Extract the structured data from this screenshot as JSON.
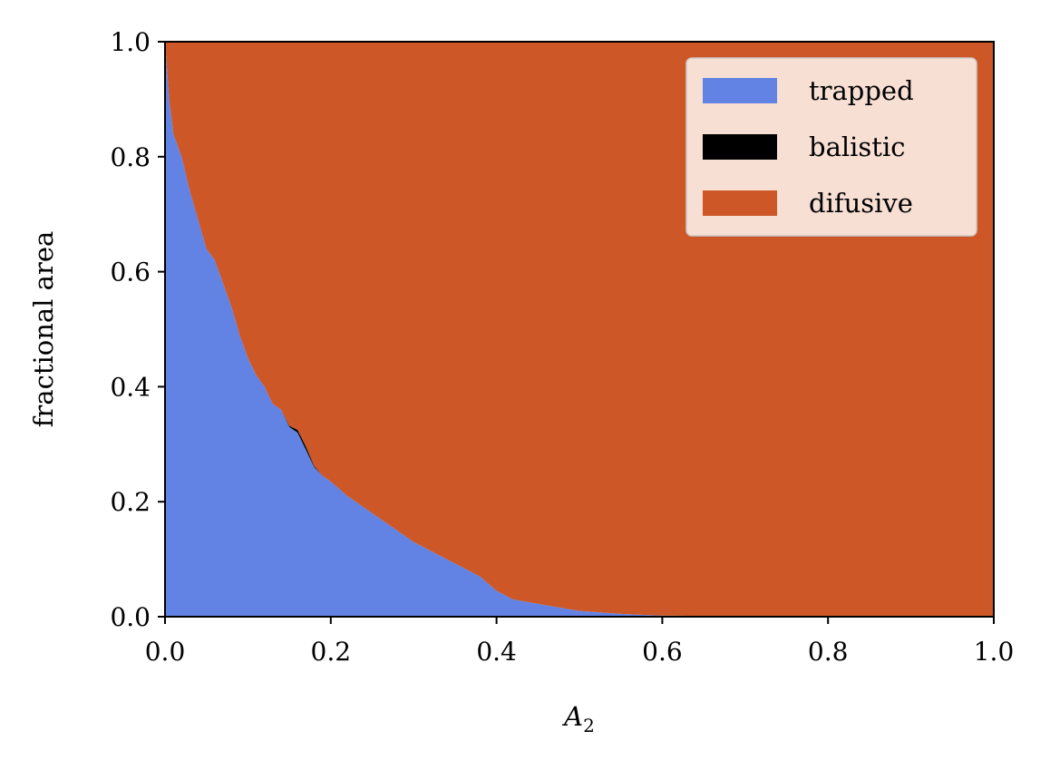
{
  "chart_data": {
    "type": "area",
    "stacked": true,
    "title": "",
    "xlabel": "A",
    "xlabel_subscript": "2",
    "ylabel": "fractional area",
    "xlim": [
      0.0,
      1.0
    ],
    "ylim": [
      0.0,
      1.0
    ],
    "xticks": [
      "0.0",
      "0.2",
      "0.4",
      "0.6",
      "0.8",
      "1.0"
    ],
    "yticks": [
      "0.0",
      "0.2",
      "0.4",
      "0.6",
      "0.8",
      "1.0"
    ],
    "grid": false,
    "legend_position": "top-right",
    "x": [
      0.0,
      0.005,
      0.01,
      0.02,
      0.03,
      0.04,
      0.05,
      0.06,
      0.07,
      0.08,
      0.09,
      0.1,
      0.11,
      0.12,
      0.13,
      0.14,
      0.15,
      0.16,
      0.17,
      0.18,
      0.19,
      0.2,
      0.22,
      0.24,
      0.26,
      0.28,
      0.3,
      0.32,
      0.34,
      0.36,
      0.38,
      0.4,
      0.42,
      0.44,
      0.46,
      0.48,
      0.5,
      0.52,
      0.55,
      0.58,
      0.6,
      0.7,
      0.8,
      0.9,
      1.0
    ],
    "series": [
      {
        "name": "trapped",
        "color": "#6283e3",
        "values": [
          1.0,
          0.9,
          0.84,
          0.8,
          0.74,
          0.69,
          0.64,
          0.62,
          0.58,
          0.54,
          0.49,
          0.45,
          0.42,
          0.4,
          0.37,
          0.36,
          0.33,
          0.32,
          0.29,
          0.26,
          0.245,
          0.235,
          0.21,
          0.19,
          0.17,
          0.15,
          0.13,
          0.115,
          0.1,
          0.085,
          0.07,
          0.045,
          0.03,
          0.025,
          0.02,
          0.015,
          0.01,
          0.008,
          0.005,
          0.003,
          0.002,
          0.001,
          0.001,
          0.001,
          0.0
        ]
      },
      {
        "name": "balistic",
        "color": "#000000",
        "values": [
          0.0,
          0.0,
          0.0,
          0.0,
          0.0,
          0.0,
          0.0,
          0.0,
          0.0,
          0.0,
          0.0,
          0.0,
          0.0,
          0.0,
          0.0,
          0.0,
          0.002,
          0.005,
          0.006,
          0.002,
          0.0,
          0.0,
          0.0,
          0.0,
          0.0,
          0.0,
          0.0,
          0.0,
          0.0,
          0.0,
          0.0,
          0.0,
          0.0,
          0.0,
          0.0,
          0.0,
          0.0,
          0.0,
          0.0,
          0.0,
          0.0,
          0.0,
          0.0,
          0.0,
          0.0
        ]
      },
      {
        "name": "difusive",
        "color": "#cd5726",
        "values": [
          0.0,
          0.1,
          0.16,
          0.2,
          0.26,
          0.31,
          0.36,
          0.38,
          0.42,
          0.46,
          0.51,
          0.55,
          0.58,
          0.6,
          0.63,
          0.64,
          0.668,
          0.675,
          0.704,
          0.738,
          0.755,
          0.765,
          0.79,
          0.81,
          0.83,
          0.85,
          0.87,
          0.885,
          0.9,
          0.915,
          0.93,
          0.955,
          0.97,
          0.975,
          0.98,
          0.985,
          0.99,
          0.992,
          0.995,
          0.997,
          0.998,
          0.999,
          0.999,
          0.999,
          1.0
        ]
      }
    ]
  }
}
